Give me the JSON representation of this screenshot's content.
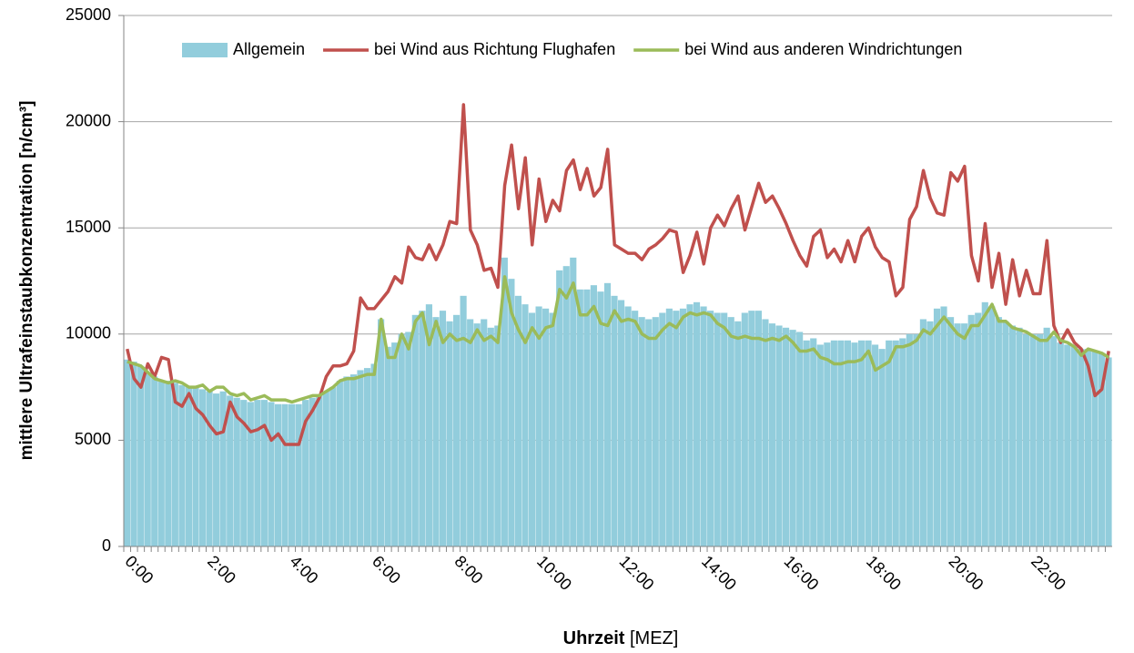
{
  "chart_data": {
    "type": "combo",
    "ylabel": "mittlere Ultrafeinstaubkonzentration [n/cm³]",
    "xlabel": "Uhrzeit",
    "xlabel_unit": "[MEZ]",
    "ylim": [
      0,
      25000
    ],
    "yticks": [
      0,
      5000,
      10000,
      15000,
      20000,
      25000
    ],
    "grid": true,
    "legend": "top",
    "categories": [
      "0:00",
      null,
      null,
      null,
      null,
      null,
      null,
      null,
      null,
      null,
      null,
      null,
      "2:00",
      null,
      null,
      null,
      null,
      null,
      null,
      null,
      null,
      null,
      null,
      null,
      "4:00",
      null,
      null,
      null,
      null,
      null,
      null,
      null,
      null,
      null,
      null,
      null,
      "6:00",
      null,
      null,
      null,
      null,
      null,
      null,
      null,
      null,
      null,
      null,
      null,
      "8:00",
      null,
      null,
      null,
      null,
      null,
      null,
      null,
      null,
      null,
      null,
      null,
      "10:00",
      null,
      null,
      null,
      null,
      null,
      null,
      null,
      null,
      null,
      null,
      null,
      "12:00",
      null,
      null,
      null,
      null,
      null,
      null,
      null,
      null,
      null,
      null,
      null,
      "14:00",
      null,
      null,
      null,
      null,
      null,
      null,
      null,
      null,
      null,
      null,
      null,
      "16:00",
      null,
      null,
      null,
      null,
      null,
      null,
      null,
      null,
      null,
      null,
      null,
      "18:00",
      null,
      null,
      null,
      null,
      null,
      null,
      null,
      null,
      null,
      null,
      null,
      "20:00",
      null,
      null,
      null,
      null,
      null,
      null,
      null,
      null,
      null,
      null,
      null,
      "22:00",
      null,
      null,
      null,
      null,
      null,
      null,
      null,
      null,
      null,
      null,
      null
    ],
    "series": [
      {
        "name": "Allgemein",
        "type": "bar",
        "color": "#92cddc",
        "values": [
          8800,
          8700,
          8500,
          8200,
          8000,
          7800,
          7800,
          7700,
          7600,
          7500,
          7500,
          7400,
          7300,
          7200,
          7300,
          7100,
          7000,
          6900,
          6800,
          6900,
          6900,
          6800,
          6700,
          6700,
          6700,
          6700,
          6900,
          7000,
          7100,
          7300,
          7500,
          7800,
          8000,
          8100,
          8300,
          8400,
          8600,
          10700,
          9400,
          9600,
          10000,
          10100,
          10900,
          11100,
          11400,
          10800,
          11100,
          10600,
          10900,
          11800,
          10700,
          10500,
          10700,
          10300,
          10400,
          13600,
          12600,
          11800,
          11400,
          11000,
          11300,
          11200,
          11000,
          13000,
          13200,
          13600,
          12100,
          12100,
          12300,
          12000,
          12400,
          11800,
          11600,
          11300,
          11100,
          10800,
          10700,
          10800,
          11000,
          11200,
          11100,
          11200,
          11400,
          11500,
          11300,
          11100,
          11000,
          11000,
          10800,
          10600,
          11000,
          11100,
          11100,
          10700,
          10500,
          10400,
          10300,
          10200,
          10100,
          9700,
          9800,
          9500,
          9600,
          9700,
          9700,
          9700,
          9600,
          9700,
          9700,
          9500,
          9300,
          9700,
          9700,
          9800,
          10000,
          10000,
          10700,
          10600,
          11200,
          11300,
          10800,
          10500,
          10500,
          10900,
          11000,
          11500,
          11300,
          10800,
          10600,
          10400,
          10300,
          10000,
          10000,
          10000,
          10300,
          9900,
          9600,
          9500,
          9400,
          9300,
          9300,
          9200,
          9100,
          8900
        ]
      },
      {
        "name": "bei Wind aus Richtung Flughafen",
        "type": "line",
        "color": "#c0504d",
        "values": [
          9300,
          7900,
          7500,
          8600,
          8000,
          8900,
          8800,
          6800,
          6600,
          7200,
          6500,
          6200,
          5700,
          5300,
          5400,
          6800,
          6100,
          5800,
          5400,
          5500,
          5700,
          5000,
          5300,
          4800,
          4800,
          4800,
          5900,
          6400,
          7000,
          8000,
          8500,
          8500,
          8600,
          9200,
          11700,
          11200,
          11200,
          11600,
          12000,
          12700,
          12400,
          14100,
          13600,
          13500,
          14200,
          13500,
          14200,
          15300,
          15200,
          20800,
          14900,
          14200,
          13000,
          13100,
          12200,
          17000,
          18900,
          15900,
          18300,
          14200,
          17300,
          15300,
          16300,
          15800,
          17700,
          18200,
          16800,
          17800,
          16500,
          16900,
          18700,
          14200,
          14000,
          13800,
          13800,
          13500,
          14000,
          14200,
          14500,
          14900,
          14800,
          12900,
          13700,
          14800,
          13300,
          15000,
          15600,
          15100,
          15900,
          16500,
          14900,
          16000,
          17100,
          16200,
          16500,
          15900,
          15200,
          14400,
          13700,
          13200,
          14600,
          14900,
          13600,
          14000,
          13400,
          14400,
          13400,
          14600,
          15000,
          14100,
          13600,
          13400,
          11800,
          12200,
          15400,
          16000,
          17700,
          16400,
          15700,
          15600,
          17600,
          17200,
          17900,
          13700,
          12500,
          15200,
          12200,
          13800,
          11400,
          13500,
          11800,
          13000,
          11900,
          11900,
          14400,
          10400,
          9600,
          10200,
          9600,
          9300,
          8500,
          7100,
          7400,
          9200
        ]
      },
      {
        "name": "bei Wind aus anderen Windrichtungen",
        "type": "line",
        "color": "#9bbb59",
        "values": [
          8700,
          8600,
          8500,
          8200,
          7900,
          7800,
          7700,
          7800,
          7700,
          7500,
          7500,
          7600,
          7300,
          7500,
          7500,
          7200,
          7100,
          7200,
          6900,
          7000,
          7100,
          6900,
          6900,
          6900,
          6800,
          6900,
          7000,
          7100,
          7100,
          7300,
          7500,
          7800,
          7900,
          7900,
          8000,
          8100,
          8100,
          10700,
          8900,
          8900,
          10000,
          9300,
          10600,
          11000,
          9500,
          10600,
          9600,
          10000,
          9700,
          9800,
          9600,
          10200,
          9700,
          9900,
          9600,
          12700,
          11000,
          10200,
          9600,
          10300,
          9800,
          10300,
          10400,
          12100,
          11700,
          12400,
          10900,
          10900,
          11300,
          10500,
          10400,
          11100,
          10600,
          10700,
          10600,
          10000,
          9800,
          9800,
          10200,
          10500,
          10300,
          10800,
          11000,
          10900,
          11000,
          10900,
          10500,
          10300,
          9900,
          9800,
          9900,
          9800,
          9800,
          9700,
          9800,
          9700,
          9900,
          9600,
          9200,
          9200,
          9300,
          8900,
          8800,
          8600,
          8600,
          8700,
          8700,
          8800,
          9200,
          8300,
          8500,
          8700,
          9400,
          9400,
          9500,
          9700,
          10200,
          10000,
          10400,
          10800,
          10400,
          10000,
          9800,
          10400,
          10400,
          10900,
          11400,
          10600,
          10600,
          10300,
          10200,
          10100,
          9900,
          9700,
          9700,
          10100,
          9700,
          9600,
          9400,
          9000,
          9300,
          9200,
          9100,
          8900
        ]
      }
    ]
  }
}
